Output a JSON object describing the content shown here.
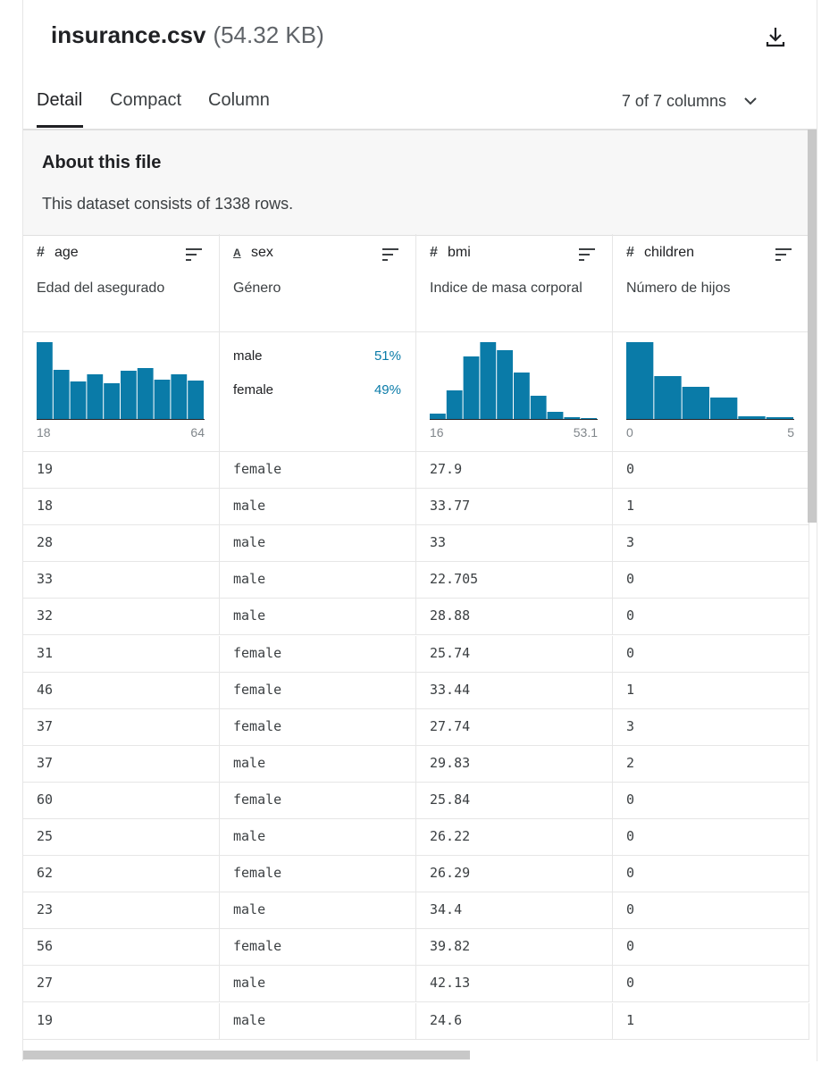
{
  "header": {
    "title": "insurance.csv",
    "size": "(54.32 KB)"
  },
  "tabs": [
    "Detail",
    "Compact",
    "Column"
  ],
  "column_count": "7 of 7 columns",
  "about": {
    "title": "About this file",
    "text": "This dataset consists of 1338 rows."
  },
  "columns": [
    {
      "icon": "#",
      "name": "age",
      "description": "Edad del asegurado",
      "histogram": [
        86,
        55,
        42,
        50,
        40,
        54,
        57,
        44,
        50,
        43
      ],
      "min": "18",
      "max": "64"
    },
    {
      "icon": "A",
      "name": "sex",
      "description": "Género",
      "categories": [
        {
          "label": "male",
          "percent": "51%"
        },
        {
          "label": "female",
          "percent": "49%"
        }
      ]
    },
    {
      "icon": "#",
      "name": "bmi",
      "description": "Indice de masa corporal",
      "histogram": [
        6,
        32,
        70,
        86,
        77,
        52,
        26,
        8,
        2,
        1
      ],
      "min": "16",
      "max": "53.1"
    },
    {
      "icon": "#",
      "name": "children",
      "description": "Número de hijos",
      "histogram": [
        86,
        48,
        36,
        24,
        3,
        2
      ],
      "min": "0",
      "max": "5"
    }
  ],
  "rows": [
    [
      "19",
      "female",
      "27.9",
      "0"
    ],
    [
      "18",
      "male",
      "33.77",
      "1"
    ],
    [
      "28",
      "male",
      "33",
      "3"
    ],
    [
      "33",
      "male",
      "22.705",
      "0"
    ],
    [
      "32",
      "male",
      "28.88",
      "0"
    ],
    [
      "31",
      "female",
      "25.74",
      "0"
    ],
    [
      "46",
      "female",
      "33.44",
      "1"
    ],
    [
      "37",
      "female",
      "27.74",
      "3"
    ],
    [
      "37",
      "male",
      "29.83",
      "2"
    ],
    [
      "60",
      "female",
      "25.84",
      "0"
    ],
    [
      "25",
      "male",
      "26.22",
      "0"
    ],
    [
      "62",
      "female",
      "26.29",
      "0"
    ],
    [
      "23",
      "male",
      "34.4",
      "0"
    ],
    [
      "56",
      "female",
      "39.82",
      "0"
    ],
    [
      "27",
      "male",
      "42.13",
      "0"
    ],
    [
      "19",
      "male",
      "24.6",
      "1"
    ]
  ]
}
